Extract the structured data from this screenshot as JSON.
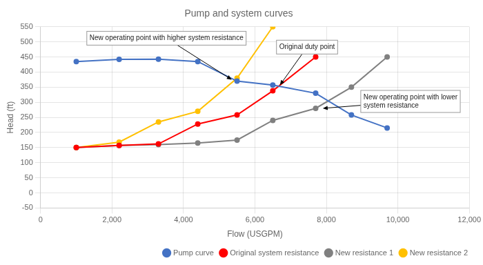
{
  "chart_data": {
    "type": "line",
    "title": "Pump and system curves",
    "xlabel": "Flow (USGPM)",
    "ylabel": "Head (ft)",
    "xlim": [
      0,
      12000
    ],
    "ylim": [
      -50,
      550
    ],
    "xticks": [
      0,
      2000,
      4000,
      6000,
      8000,
      10000,
      12000
    ],
    "yticks": [
      -50,
      0,
      50,
      100,
      150,
      200,
      250,
      300,
      350,
      400,
      450,
      500,
      550
    ],
    "grid": true,
    "legend": "lower right",
    "series": [
      {
        "name": "Pump curve",
        "color": "#4472C4",
        "marker": "circle",
        "x": [
          1000,
          2200,
          3300,
          4400,
          5500,
          6500,
          7700,
          8700,
          9700
        ],
        "values": [
          435,
          442,
          443,
          435,
          370,
          357,
          330,
          258,
          215
        ]
      },
      {
        "name": "Original system resistance",
        "color": "#FF0000",
        "marker": "circle",
        "x": [
          1000,
          2200,
          3300,
          4400,
          5500,
          6500,
          7700
        ],
        "values": [
          150,
          157,
          162,
          228,
          258,
          338,
          450
        ]
      },
      {
        "name": "New resistance 1",
        "color": "#808080",
        "marker": "circle",
        "x": [
          1000,
          2200,
          3300,
          4400,
          5500,
          6500,
          7700,
          8700,
          9700
        ],
        "values": [
          150,
          157,
          160,
          165,
          175,
          240,
          280,
          350,
          450
        ]
      },
      {
        "name": "New resistance 2",
        "color": "#FFC000",
        "marker": "circle",
        "x": [
          1000,
          2200,
          3300,
          4400,
          5500,
          6500
        ],
        "values": [
          150,
          168,
          235,
          270,
          380,
          550
        ]
      }
    ],
    "annotations": [
      {
        "text": "New operating point with higher system resistance",
        "x": 5350,
        "y": 375
      },
      {
        "text": "Original duty point",
        "x": 6700,
        "y": 357
      },
      {
        "text": "New operating point with lower\nsystem resistance",
        "x": 7900,
        "y": 280
      }
    ]
  }
}
